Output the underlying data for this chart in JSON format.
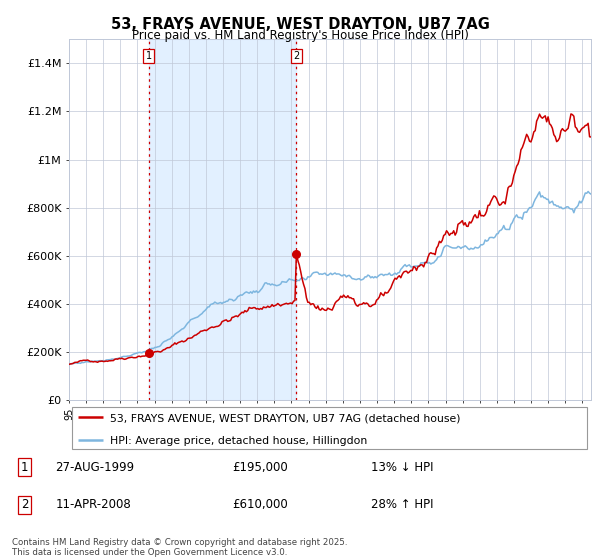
{
  "title": "53, FRAYS AVENUE, WEST DRAYTON, UB7 7AG",
  "subtitle": "Price paid vs. HM Land Registry's House Price Index (HPI)",
  "legend_line1": "53, FRAYS AVENUE, WEST DRAYTON, UB7 7AG (detached house)",
  "legend_line2": "HPI: Average price, detached house, Hillingdon",
  "annotation1_label": "1",
  "annotation1_date": "27-AUG-1999",
  "annotation1_price": "£195,000",
  "annotation1_hpi": "13% ↓ HPI",
  "annotation2_label": "2",
  "annotation2_date": "11-APR-2008",
  "annotation2_price": "£610,000",
  "annotation2_hpi": "28% ↑ HPI",
  "footer": "Contains HM Land Registry data © Crown copyright and database right 2025.\nThis data is licensed under the Open Government Licence v3.0.",
  "red_color": "#cc0000",
  "blue_color": "#7eb6df",
  "bg_shade_color": "#ddeeff",
  "grid_color": "#c0c8d8",
  "annotation_box_color": "#cc0000",
  "ylim": [
    0,
    1500000
  ],
  "yticks": [
    0,
    200000,
    400000,
    600000,
    800000,
    1000000,
    1200000,
    1400000
  ],
  "ytick_labels": [
    "£0",
    "£200K",
    "£400K",
    "£600K",
    "£800K",
    "£1M",
    "£1.2M",
    "£1.4M"
  ],
  "xstart_year": 1995,
  "xend_year": 2025,
  "purchase1_year": 1999.65,
  "purchase1_price": 195000,
  "purchase2_year": 2008.27,
  "purchase2_price": 610000
}
